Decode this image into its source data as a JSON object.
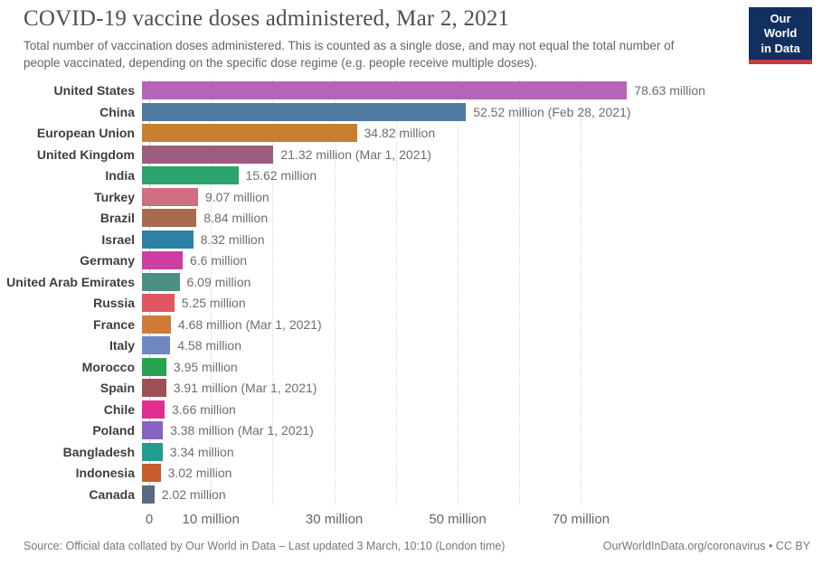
{
  "header": {
    "title": "COVID-19 vaccine doses administered, Mar 2, 2021",
    "subtitle": "Total number of vaccination doses administered. This is counted as a single dose, and may not equal the total number of people vaccinated, depending on the specific dose regime (e.g. people receive multiple doses).",
    "logo": {
      "line1": "Our World",
      "line2": "in Data",
      "bg_color": "#12305F",
      "accent_color": "#C53A3C"
    }
  },
  "chart_data": {
    "type": "bar",
    "orientation": "horizontal",
    "unit": "million doses",
    "xlim": [
      0,
      80
    ],
    "grid": "dotted vertical gridlines every 10 million",
    "gridline_values": [
      10,
      20,
      30,
      40,
      50,
      60,
      70
    ],
    "ticks": [
      {
        "value": 0,
        "label": "0"
      },
      {
        "value": 10,
        "label": "10 million"
      },
      {
        "value": 30,
        "label": "30 million"
      },
      {
        "value": 50,
        "label": "50 million"
      },
      {
        "value": 70,
        "label": "70 million"
      }
    ],
    "series": [
      {
        "country": "United States",
        "value_million": 78.63,
        "label": "78.63 million",
        "color": "#B465B6"
      },
      {
        "country": "China",
        "value_million": 52.52,
        "label": "52.52 million (Feb 28, 2021)",
        "color": "#5079A1"
      },
      {
        "country": "European Union",
        "value_million": 34.82,
        "label": "34.82 million",
        "color": "#C8802F"
      },
      {
        "country": "United Kingdom",
        "value_million": 21.32,
        "label": "21.32 million (Mar 1, 2021)",
        "color": "#9D5C7F"
      },
      {
        "country": "India",
        "value_million": 15.62,
        "label": "15.62 million",
        "color": "#2AA36D"
      },
      {
        "country": "Turkey",
        "value_million": 9.07,
        "label": "9.07 million",
        "color": "#D16F80"
      },
      {
        "country": "Brazil",
        "value_million": 8.84,
        "label": "8.84 million",
        "color": "#A96B4F"
      },
      {
        "country": "Israel",
        "value_million": 8.32,
        "label": "8.32 million",
        "color": "#2F80A9"
      },
      {
        "country": "Germany",
        "value_million": 6.6,
        "label": "6.6 million",
        "color": "#CC3EA2"
      },
      {
        "country": "United Arab Emirates",
        "value_million": 6.09,
        "label": "6.09 million",
        "color": "#4B8F85"
      },
      {
        "country": "Russia",
        "value_million": 5.25,
        "label": "5.25 million",
        "color": "#E25662"
      },
      {
        "country": "France",
        "value_million": 4.68,
        "label": "4.68 million (Mar 1, 2021)",
        "color": "#D07C37"
      },
      {
        "country": "Italy",
        "value_million": 4.58,
        "label": "4.58 million",
        "color": "#7088C1"
      },
      {
        "country": "Morocco",
        "value_million": 3.95,
        "label": "3.95 million",
        "color": "#2AA251"
      },
      {
        "country": "Spain",
        "value_million": 3.91,
        "label": "3.91 million (Mar 1, 2021)",
        "color": "#A04F57"
      },
      {
        "country": "Chile",
        "value_million": 3.66,
        "label": "3.66 million",
        "color": "#E02F90"
      },
      {
        "country": "Poland",
        "value_million": 3.38,
        "label": "3.38 million (Mar 1, 2021)",
        "color": "#8762C0"
      },
      {
        "country": "Bangladesh",
        "value_million": 3.34,
        "label": "3.34 million",
        "color": "#229C90"
      },
      {
        "country": "Indonesia",
        "value_million": 3.02,
        "label": "3.02 million",
        "color": "#C65D2B"
      },
      {
        "country": "Canada",
        "value_million": 2.02,
        "label": "2.02 million",
        "color": "#596B80"
      }
    ]
  },
  "footer": {
    "source": "Source: Official data collated by Our World in Data – Last updated 3 March, 10:10 (London time)",
    "license": "OurWorldInData.org/coronavirus • CC BY"
  }
}
